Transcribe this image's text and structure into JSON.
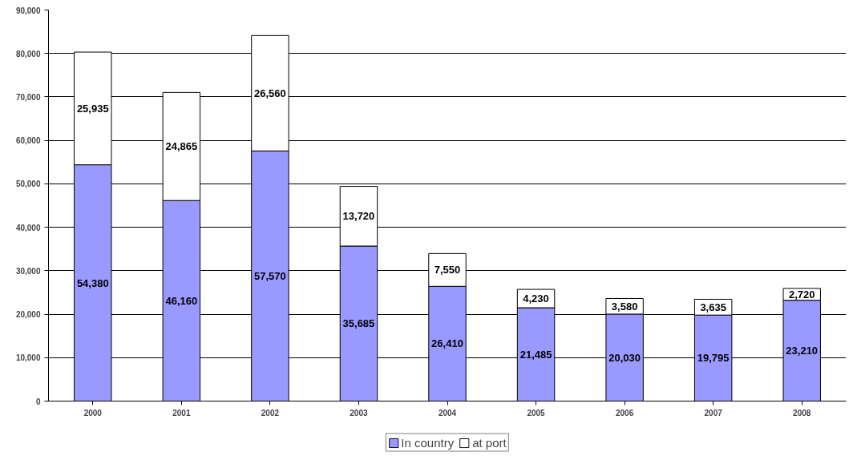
{
  "chart_data": {
    "type": "bar",
    "stacked": true,
    "categories": [
      "2000",
      "2001",
      "2002",
      "2003",
      "2004",
      "2005",
      "2006",
      "2007",
      "2008"
    ],
    "series": [
      {
        "name": "In country",
        "color": "#9999ff",
        "values": [
          54380,
          46160,
          57570,
          35685,
          26410,
          21485,
          20030,
          19795,
          23210
        ],
        "value_labels": [
          "54,380",
          "46,160",
          "57,570",
          "35,685",
          "26,410",
          "21,485",
          "20,030",
          "19,795",
          "23,210"
        ]
      },
      {
        "name": "at port",
        "color": "#ffffff",
        "values": [
          25935,
          24865,
          26560,
          13720,
          7550,
          4230,
          3580,
          3635,
          2720
        ],
        "value_labels": [
          "25,935",
          "24,865",
          "26,560",
          "13,720",
          "7,550",
          "4,230",
          "3,580",
          "3,635",
          "2,720"
        ]
      }
    ],
    "ylim": [
      0,
      90000
    ],
    "yticks": [
      0,
      {
        "value": 10000,
        "label": "10,000"
      },
      {
        "value": 20000,
        "label": "20,000"
      },
      {
        "value": 30000,
        "label": "30,000"
      },
      {
        "value": 40000,
        "label": "40,000"
      },
      {
        "value": 50000,
        "label": "50,000"
      },
      {
        "value": 60000,
        "label": "60,000"
      },
      {
        "value": 70000,
        "label": "70,000"
      },
      {
        "value": 80000,
        "label": "80,000"
      },
      {
        "value": 90000,
        "label": "90,000"
      }
    ],
    "grid": "y",
    "legend": "bottom"
  }
}
